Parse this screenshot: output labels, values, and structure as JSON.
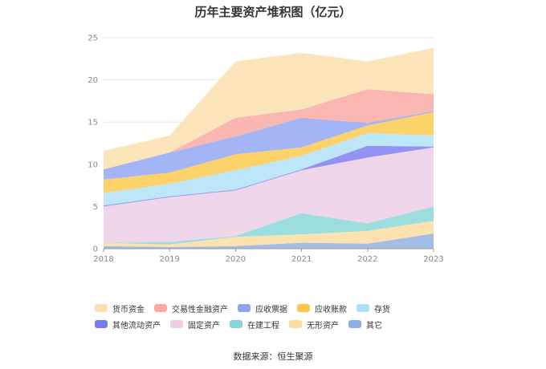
{
  "chart_data": {
    "type": "area",
    "stacked": true,
    "title": "历年主要资产堆积图（亿元）",
    "x": [
      "2018",
      "2019",
      "2020",
      "2021",
      "2022",
      "2023"
    ],
    "ylim": [
      0,
      25
    ],
    "yticks": [
      0,
      5,
      10,
      15,
      20,
      25
    ],
    "grid": true,
    "legend_position": "bottom",
    "series": [
      {
        "name": "其它",
        "color": "#8eaee0",
        "values": [
          0.3,
          0.2,
          0.3,
          0.7,
          0.6,
          1.8
        ]
      },
      {
        "name": "无形资产",
        "color": "#fddca0",
        "values": [
          0.4,
          0.3,
          1.1,
          1.0,
          1.5,
          1.5
        ]
      },
      {
        "name": "在建工程",
        "color": "#86d6d7",
        "values": [
          0.0,
          0.3,
          0.1,
          2.5,
          0.9,
          1.7
        ]
      },
      {
        "name": "固定资产",
        "color": "#edcde6",
        "values": [
          4.3,
          5.3,
          5.4,
          5.1,
          7.8,
          7.0
        ]
      },
      {
        "name": "其他流动资产",
        "color": "#7b7bf0",
        "values": [
          0.1,
          0.1,
          0.1,
          0.1,
          1.4,
          0.1
        ]
      },
      {
        "name": "存货",
        "color": "#aee0f7",
        "values": [
          1.5,
          1.5,
          2.3,
          1.6,
          1.5,
          1.3
        ]
      },
      {
        "name": "应收账款",
        "color": "#fbc84a",
        "values": [
          1.6,
          1.3,
          1.9,
          1.0,
          0.9,
          2.8
        ]
      },
      {
        "name": "应收票据",
        "color": "#8fa5f3",
        "values": [
          1.2,
          2.4,
          2.1,
          3.5,
          0.3,
          0.1
        ]
      },
      {
        "name": "交易性金融资产",
        "color": "#f9a7a0",
        "values": [
          0.0,
          0.0,
          2.2,
          1.0,
          4.0,
          2.0
        ]
      },
      {
        "name": "货币资金",
        "color": "#fddfac",
        "values": [
          2.2,
          2.0,
          6.7,
          6.7,
          3.3,
          5.5
        ]
      }
    ],
    "legend_order": [
      "货币资金",
      "交易性金融资产",
      "应收票据",
      "应收账款",
      "存货",
      "其他流动资产",
      "固定资产",
      "在建工程",
      "无形资产",
      "其它"
    ]
  },
  "source": "数据来源：恒生聚源"
}
